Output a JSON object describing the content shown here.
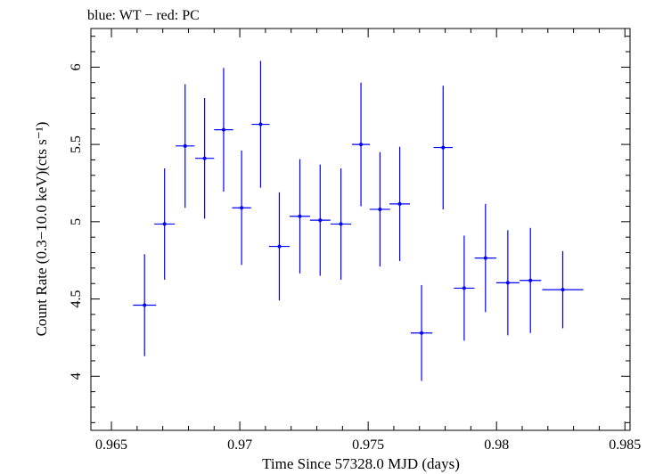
{
  "header": {
    "text": "blue: WT − red: PC"
  },
  "chart_data": {
    "type": "scatter",
    "xlabel": "Time Since 57328.0 MJD (days)",
    "ylabel": "Count Rate (0.3−10.0 keV)(cts s⁻¹)",
    "xlim": [
      0.9642,
      0.9852
    ],
    "ylim": [
      3.65,
      6.25
    ],
    "x_ticks": [
      0.965,
      0.97,
      0.975,
      0.98,
      0.985
    ],
    "x_tick_labels": [
      "0.965",
      "0.97",
      "0.975",
      "0.98",
      "0.985"
    ],
    "y_ticks": [
      4,
      4.5,
      5,
      5.5,
      6
    ],
    "y_tick_labels": [
      "4",
      "4.5",
      "5",
      "5.5",
      "6"
    ],
    "grid": false,
    "series": [
      {
        "color": "#0000ff",
        "points": [
          {
            "x": 0.96629,
            "xerr": 0.00045,
            "y": 4.46,
            "yerr": 0.33
          },
          {
            "x": 0.96707,
            "xerr": 0.0004,
            "y": 4.985,
            "yerr": 0.36
          },
          {
            "x": 0.96787,
            "xerr": 0.00037,
            "y": 5.49,
            "yerr": 0.4
          },
          {
            "x": 0.96863,
            "xerr": 0.00037,
            "y": 5.41,
            "yerr": 0.39
          },
          {
            "x": 0.96937,
            "xerr": 0.00037,
            "y": 5.595,
            "yerr": 0.4
          },
          {
            "x": 0.97007,
            "xerr": 0.00037,
            "y": 5.09,
            "yerr": 0.37
          },
          {
            "x": 0.97081,
            "xerr": 0.00035,
            "y": 5.63,
            "yerr": 0.41
          },
          {
            "x": 0.97154,
            "xerr": 0.0004,
            "y": 4.84,
            "yerr": 0.35
          },
          {
            "x": 0.97234,
            "xerr": 0.0004,
            "y": 5.035,
            "yerr": 0.37
          },
          {
            "x": 0.97313,
            "xerr": 0.0004,
            "y": 5.01,
            "yerr": 0.36
          },
          {
            "x": 0.97394,
            "xerr": 0.0004,
            "y": 4.985,
            "yerr": 0.36
          },
          {
            "x": 0.97472,
            "xerr": 0.00035,
            "y": 5.5,
            "yerr": 0.4
          },
          {
            "x": 0.97546,
            "xerr": 0.0004,
            "y": 5.08,
            "yerr": 0.37
          },
          {
            "x": 0.97623,
            "xerr": 0.0004,
            "y": 5.115,
            "yerr": 0.37
          },
          {
            "x": 0.97708,
            "xerr": 0.00042,
            "y": 4.28,
            "yerr": 0.31
          },
          {
            "x": 0.97792,
            "xerr": 0.00037,
            "y": 5.48,
            "yerr": 0.4
          },
          {
            "x": 0.97874,
            "xerr": 0.0004,
            "y": 4.57,
            "yerr": 0.34
          },
          {
            "x": 0.97957,
            "xerr": 0.00042,
            "y": 4.765,
            "yerr": 0.35
          },
          {
            "x": 0.98044,
            "xerr": 0.00045,
            "y": 4.605,
            "yerr": 0.34
          },
          {
            "x": 0.98132,
            "xerr": 0.00042,
            "y": 4.62,
            "yerr": 0.34
          },
          {
            "x": 0.98258,
            "xerr": 0.0008,
            "y": 4.56,
            "yerr": 0.25
          }
        ]
      }
    ]
  }
}
